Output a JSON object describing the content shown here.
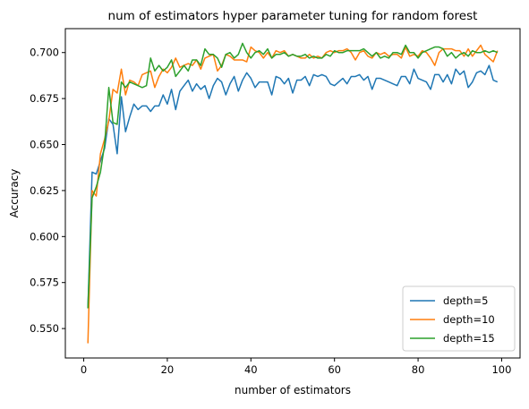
{
  "chart_data": {
    "type": "line",
    "title": "num of estimators hyper parameter tuning for random forest",
    "xlabel": "number of estimators",
    "ylabel": "Accuracy",
    "xlim": [
      -4.4,
      104.4
    ],
    "ylim": [
      0.534,
      0.713
    ],
    "xticks": [
      0,
      20,
      40,
      60,
      80,
      100
    ],
    "xtick_labels": [
      "0",
      "20",
      "40",
      "60",
      "80",
      "100"
    ],
    "yticks": [
      0.55,
      0.575,
      0.6,
      0.625,
      0.65,
      0.675,
      0.7
    ],
    "ytick_labels": [
      "0.550",
      "0.575",
      "0.600",
      "0.625",
      "0.650",
      "0.675",
      "0.700"
    ],
    "grid": false,
    "legend_position": "lower-right",
    "x": [
      1,
      2,
      3,
      4,
      5,
      6,
      7,
      8,
      9,
      10,
      11,
      12,
      13,
      14,
      15,
      16,
      17,
      18,
      19,
      20,
      21,
      22,
      23,
      24,
      25,
      26,
      27,
      28,
      29,
      30,
      31,
      32,
      33,
      34,
      35,
      36,
      37,
      38,
      39,
      40,
      41,
      42,
      43,
      44,
      45,
      46,
      47,
      48,
      49,
      50,
      51,
      52,
      53,
      54,
      55,
      56,
      57,
      58,
      59,
      60,
      61,
      62,
      63,
      64,
      65,
      66,
      67,
      68,
      69,
      70,
      71,
      72,
      73,
      74,
      75,
      76,
      77,
      78,
      79,
      80,
      81,
      82,
      83,
      84,
      85,
      86,
      87,
      88,
      89,
      90,
      91,
      92,
      93,
      94,
      95,
      96,
      97,
      98,
      99
    ],
    "series": [
      {
        "name": "depth=5",
        "color": "#1f77b4",
        "values": [
          0.561,
          0.635,
          0.634,
          0.641,
          0.648,
          0.664,
          0.661,
          0.645,
          0.676,
          0.657,
          0.665,
          0.672,
          0.669,
          0.671,
          0.671,
          0.668,
          0.671,
          0.671,
          0.677,
          0.672,
          0.68,
          0.669,
          0.679,
          0.682,
          0.685,
          0.679,
          0.683,
          0.68,
          0.682,
          0.675,
          0.682,
          0.686,
          0.684,
          0.677,
          0.683,
          0.687,
          0.679,
          0.685,
          0.689,
          0.686,
          0.681,
          0.684,
          0.684,
          0.684,
          0.677,
          0.687,
          0.686,
          0.683,
          0.686,
          0.678,
          0.685,
          0.685,
          0.687,
          0.682,
          0.688,
          0.687,
          0.688,
          0.687,
          0.683,
          0.682,
          0.684,
          0.686,
          0.683,
          0.687,
          0.687,
          0.688,
          0.685,
          0.687,
          0.68,
          0.686,
          0.686,
          0.685,
          0.684,
          0.683,
          0.682,
          0.687,
          0.687,
          0.683,
          0.691,
          0.686,
          0.685,
          0.684,
          0.68,
          0.688,
          0.688,
          0.684,
          0.688,
          0.683,
          0.691,
          0.688,
          0.69,
          0.681,
          0.684,
          0.689,
          0.69,
          0.688,
          0.693,
          0.685,
          0.684
        ]
      },
      {
        "name": "depth=10",
        "color": "#ff7f0e",
        "values": [
          0.542,
          0.625,
          0.622,
          0.645,
          0.653,
          0.663,
          0.68,
          0.678,
          0.691,
          0.677,
          0.685,
          0.684,
          0.682,
          0.688,
          0.689,
          0.69,
          0.681,
          0.687,
          0.691,
          0.689,
          0.692,
          0.697,
          0.692,
          0.693,
          0.694,
          0.693,
          0.696,
          0.691,
          0.697,
          0.698,
          0.699,
          0.69,
          0.693,
          0.699,
          0.698,
          0.696,
          0.696,
          0.696,
          0.695,
          0.703,
          0.701,
          0.7,
          0.697,
          0.7,
          0.697,
          0.701,
          0.7,
          0.701,
          0.698,
          0.699,
          0.698,
          0.697,
          0.697,
          0.699,
          0.697,
          0.698,
          0.697,
          0.7,
          0.701,
          0.7,
          0.701,
          0.701,
          0.702,
          0.7,
          0.696,
          0.7,
          0.701,
          0.698,
          0.697,
          0.7,
          0.699,
          0.7,
          0.698,
          0.699,
          0.699,
          0.697,
          0.703,
          0.698,
          0.699,
          0.698,
          0.701,
          0.7,
          0.697,
          0.693,
          0.7,
          0.702,
          0.702,
          0.702,
          0.701,
          0.701,
          0.698,
          0.702,
          0.698,
          0.701,
          0.704,
          0.699,
          0.697,
          0.695,
          0.701
        ]
      },
      {
        "name": "depth=15",
        "color": "#2ca02c",
        "values": [
          0.561,
          0.621,
          0.627,
          0.635,
          0.65,
          0.681,
          0.662,
          0.661,
          0.684,
          0.681,
          0.684,
          0.683,
          0.682,
          0.681,
          0.682,
          0.697,
          0.69,
          0.693,
          0.69,
          0.692,
          0.696,
          0.687,
          0.69,
          0.693,
          0.69,
          0.696,
          0.696,
          0.693,
          0.702,
          0.699,
          0.699,
          0.697,
          0.692,
          0.699,
          0.7,
          0.697,
          0.699,
          0.705,
          0.7,
          0.697,
          0.7,
          0.701,
          0.699,
          0.702,
          0.697,
          0.699,
          0.699,
          0.7,
          0.698,
          0.699,
          0.698,
          0.698,
          0.699,
          0.697,
          0.698,
          0.697,
          0.697,
          0.699,
          0.698,
          0.701,
          0.7,
          0.7,
          0.701,
          0.701,
          0.701,
          0.701,
          0.702,
          0.7,
          0.698,
          0.7,
          0.697,
          0.698,
          0.697,
          0.7,
          0.7,
          0.699,
          0.704,
          0.7,
          0.7,
          0.697,
          0.7,
          0.701,
          0.702,
          0.703,
          0.703,
          0.702,
          0.698,
          0.7,
          0.697,
          0.699,
          0.7,
          0.698,
          0.701,
          0.7,
          0.7,
          0.701,
          0.7,
          0.701,
          0.7
        ]
      }
    ]
  }
}
